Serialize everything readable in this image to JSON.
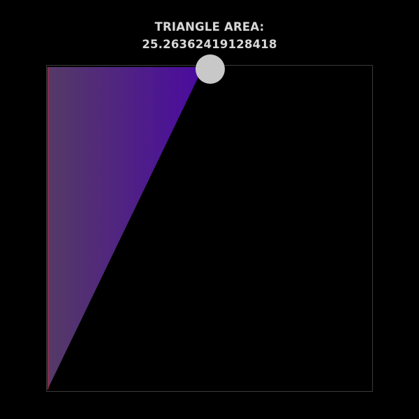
{
  "header": {
    "label": "TRIANGLE AREA:",
    "value": "25.26362419128418"
  },
  "colors": {
    "background": "#000000",
    "frame": "#3a3a3a",
    "fill_left": "#553a66",
    "fill_right": "#4a0aa0",
    "edge": "#c81e2a",
    "handle": "#c8c8c8",
    "text": "#d8d8d8"
  },
  "handle": {
    "icon": "circle-handle-icon"
  }
}
